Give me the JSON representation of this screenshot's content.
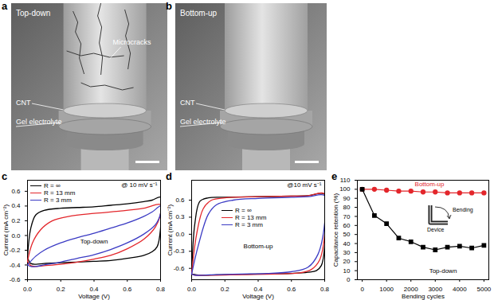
{
  "images": [
    {
      "panel": "a",
      "title": "Top-down",
      "labels": {
        "cracks": "Microcracks",
        "cnt": "CNT",
        "gel": "Gel electrolyte"
      }
    },
    {
      "panel": "b",
      "title": "Bottom-up",
      "labels": {
        "cnt": "CNT",
        "gel": "Gel electrolyte"
      }
    }
  ],
  "chart_data": [
    {
      "type": "line",
      "panel": "c",
      "annotations": [
        "@ 10 mV s⁻¹",
        "Top-down"
      ],
      "x_label": "Voltage (V)",
      "y_label": "Current (mA cm⁻²)",
      "xlim": [
        0,
        0.8
      ],
      "xticks": [
        {
          "value": 0,
          "label": "0.0"
        },
        0.2,
        0.4,
        0.6,
        0.8
      ],
      "ylim": [
        -0.6,
        0.75
      ],
      "yticks": [
        -0.6,
        -0.4,
        -0.2,
        {
          "value": 0,
          "label": "0.0"
        },
        0.2,
        0.4,
        0.6
      ],
      "legend": "top-left",
      "series": [
        {
          "name": "R = ∞",
          "color": "#000000",
          "x": [
            0,
            0.02,
            0.05,
            0.1,
            0.2,
            0.3,
            0.4,
            0.5,
            0.6,
            0.7,
            0.75,
            0.8,
            0.8,
            0.78,
            0.75,
            0.7,
            0.6,
            0.5,
            0.4,
            0.3,
            0.2,
            0.1,
            0.05,
            0.02,
            0
          ],
          "values": [
            -0.3,
            0.1,
            0.28,
            0.34,
            0.37,
            0.38,
            0.39,
            0.41,
            0.43,
            0.46,
            0.48,
            0.52,
            0.1,
            -0.15,
            -0.22,
            -0.27,
            -0.31,
            -0.34,
            -0.35,
            -0.36,
            -0.37,
            -0.38,
            -0.39,
            -0.38,
            -0.3
          ]
        },
        {
          "name": "R = 13 mm",
          "color": "#e3262b",
          "x": [
            0,
            0.03,
            0.08,
            0.15,
            0.25,
            0.4,
            0.55,
            0.7,
            0.8,
            0.8,
            0.77,
            0.7,
            0.6,
            0.5,
            0.4,
            0.3,
            0.2,
            0.1,
            0.05,
            0.02,
            0
          ],
          "values": [
            -0.35,
            -0.1,
            0.08,
            0.2,
            0.26,
            0.3,
            0.33,
            0.37,
            0.42,
            0.3,
            0.12,
            -0.05,
            -0.18,
            -0.27,
            -0.32,
            -0.36,
            -0.39,
            -0.41,
            -0.42,
            -0.41,
            -0.35
          ]
        },
        {
          "name": "R = 3 mm",
          "color": "#3b3bc4",
          "x": [
            0,
            0.05,
            0.1,
            0.2,
            0.3,
            0.4,
            0.5,
            0.6,
            0.7,
            0.75,
            0.8,
            0.8,
            0.77,
            0.7,
            0.6,
            0.5,
            0.4,
            0.3,
            0.2,
            0.1,
            0.05,
            0.02,
            0
          ],
          "values": [
            -0.4,
            -0.28,
            -0.2,
            -0.1,
            -0.03,
            0.03,
            0.1,
            0.17,
            0.26,
            0.32,
            0.4,
            0.3,
            0.15,
            0.02,
            -0.1,
            -0.19,
            -0.26,
            -0.31,
            -0.36,
            -0.4,
            -0.42,
            -0.42,
            -0.4
          ]
        }
      ]
    },
    {
      "type": "line",
      "panel": "d",
      "annotations": [
        "@10 mV s⁻¹",
        "Bottom-up"
      ],
      "x_label": "Voltage (V)",
      "y_label": "Current (mA cm⁻²)",
      "xlim": [
        0,
        0.8
      ],
      "xticks": [
        {
          "value": 0,
          "label": "0.0"
        },
        0.2,
        0.4,
        0.6,
        0.8
      ],
      "ylim": [
        -0.8,
        0.95
      ],
      "yticks": [
        -0.6,
        -0.3,
        {
          "value": 0,
          "label": "0.0"
        },
        0.3,
        0.6
      ],
      "legend": "center",
      "series": [
        {
          "name": "R = ∞",
          "color": "#000000",
          "x": [
            0,
            0.02,
            0.05,
            0.1,
            0.2,
            0.4,
            0.6,
            0.7,
            0.8,
            0.8,
            0.78,
            0.75,
            0.7,
            0.6,
            0.4,
            0.2,
            0.1,
            0.05,
            0
          ],
          "values": [
            -0.7,
            0.2,
            0.58,
            0.64,
            0.65,
            0.66,
            0.67,
            0.68,
            0.7,
            -0.2,
            -0.55,
            -0.64,
            -0.67,
            -0.69,
            -0.7,
            -0.71,
            -0.72,
            -0.72,
            -0.7
          ]
        },
        {
          "name": "R = 13 mm",
          "color": "#e3262b",
          "x": [
            0,
            0.03,
            0.07,
            0.12,
            0.2,
            0.4,
            0.6,
            0.7,
            0.8,
            0.8,
            0.77,
            0.72,
            0.65,
            0.5,
            0.3,
            0.15,
            0.07,
            0.02,
            0
          ],
          "values": [
            -0.7,
            0.0,
            0.45,
            0.6,
            0.64,
            0.66,
            0.67,
            0.68,
            0.71,
            0.0,
            -0.45,
            -0.62,
            -0.68,
            -0.7,
            -0.71,
            -0.72,
            -0.72,
            -0.72,
            -0.7
          ]
        },
        {
          "name": "R = 3 mm",
          "color": "#3b3bc4",
          "x": [
            0,
            0.04,
            0.1,
            0.15,
            0.25,
            0.4,
            0.6,
            0.7,
            0.8,
            0.8,
            0.76,
            0.7,
            0.6,
            0.45,
            0.3,
            0.15,
            0.07,
            0.02,
            0
          ],
          "values": [
            -0.7,
            -0.2,
            0.35,
            0.52,
            0.6,
            0.63,
            0.65,
            0.66,
            0.68,
            0.2,
            -0.35,
            -0.58,
            -0.66,
            -0.69,
            -0.7,
            -0.71,
            -0.72,
            -0.72,
            -0.7
          ]
        }
      ]
    },
    {
      "type": "line",
      "panel": "e",
      "annotations": [
        "Bending",
        "Device"
      ],
      "x_label": "Bending cycles",
      "y_label": "Capacitance retention (%)",
      "xlim": [
        -200,
        5200
      ],
      "xticks": [
        0,
        1000,
        2000,
        3000,
        4000,
        5000
      ],
      "ylim": [
        0,
        110
      ],
      "yticks": [
        0,
        10,
        20,
        30,
        40,
        50,
        60,
        70,
        80,
        90,
        100,
        110
      ],
      "x": [
        0,
        500,
        1000,
        1500,
        2000,
        2500,
        3000,
        3500,
        4000,
        4500,
        5000
      ],
      "series": [
        {
          "name": "Bottom-up",
          "color": "#e3262b",
          "marker": "circle",
          "values": [
            100,
            100,
            99,
            98,
            98,
            97,
            97,
            96,
            96,
            96,
            96
          ]
        },
        {
          "name": "Top-down",
          "color": "#000000",
          "marker": "square",
          "values": [
            100,
            71,
            62,
            46,
            42,
            36,
            33,
            36,
            37,
            35,
            38
          ]
        }
      ]
    }
  ]
}
